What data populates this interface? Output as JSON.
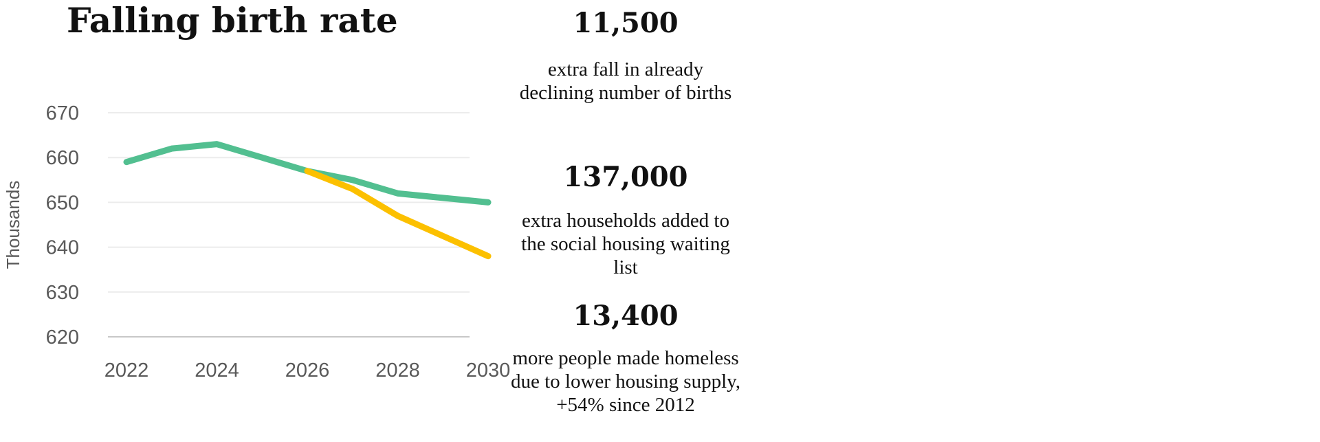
{
  "stats": [
    {
      "value": "11,500",
      "description": "extra fall in already declining number of births"
    },
    {
      "value": "137,000",
      "description": "extra households added to the social housing waiting list"
    },
    {
      "value": "13,400",
      "description": "more people made homeless due to lower housing supply, +54% since 2012"
    }
  ],
  "chart_data": {
    "type": "line",
    "title": "Falling birth rate",
    "xlabel": "",
    "ylabel": "Thousands",
    "xlim": [
      2022,
      2030
    ],
    "ylim": [
      620,
      670
    ],
    "x_ticks": [
      2022,
      2024,
      2026,
      2028,
      2030
    ],
    "y_ticks": [
      620,
      630,
      640,
      650,
      660,
      670
    ],
    "grid": true,
    "legend": "none",
    "series": [
      {
        "color": "#52bf90",
        "x": [
          2022,
          2023,
          2024,
          2025,
          2026,
          2027,
          2028,
          2029,
          2030
        ],
        "y": [
          659,
          662,
          663,
          660,
          657,
          655,
          652,
          651,
          650
        ]
      },
      {
        "color": "#fcc000",
        "x": [
          2026,
          2027,
          2028,
          2029,
          2030
        ],
        "y": [
          657,
          653,
          647,
          642.5,
          638
        ]
      }
    ]
  }
}
